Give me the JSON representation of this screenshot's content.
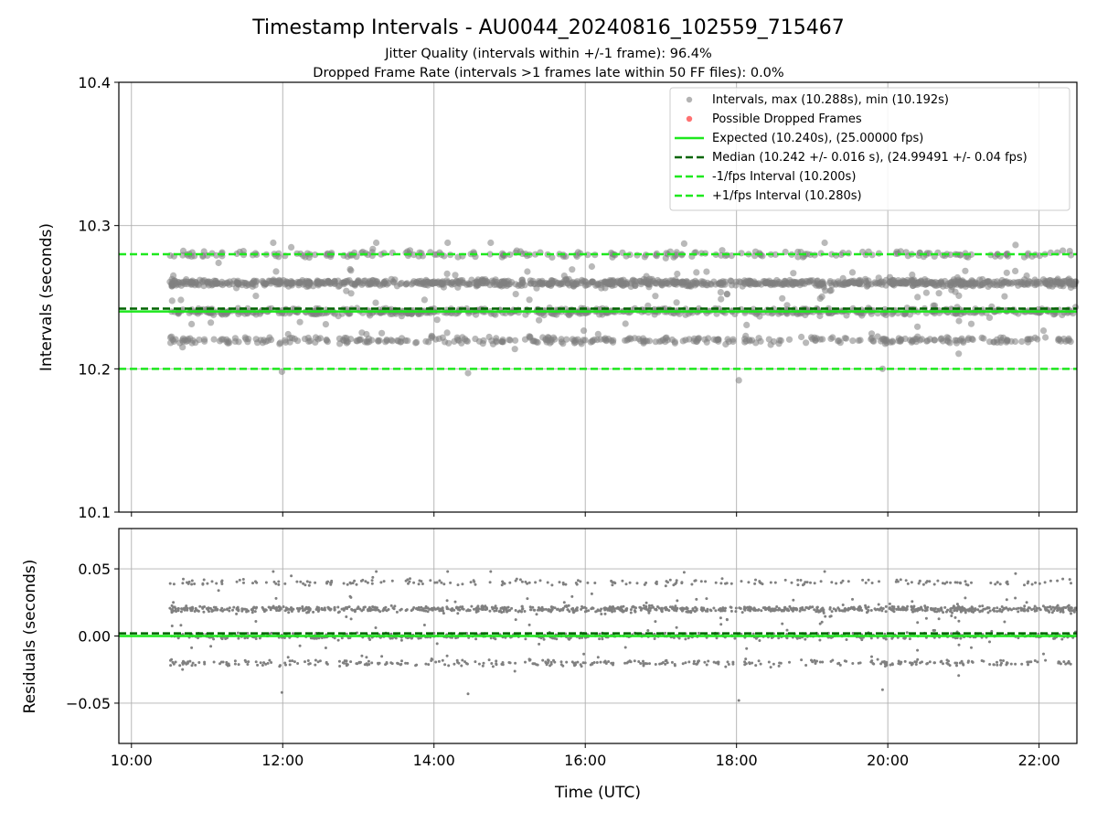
{
  "figure": {
    "title": "Timestamp Intervals - AU0044_20240816_102559_715467",
    "subtitle_1": "Jitter Quality (intervals within +/-1 frame): 96.4%",
    "subtitle_2": "Dropped Frame Rate (intervals >1 frames late within 50 FF files): 0.0%",
    "xlabel": "Time (UTC)"
  },
  "colors": {
    "scatter": "#808080",
    "dropped": "#ff4d4d",
    "expected": "#1ee81e",
    "median": "#006400",
    "interval_lines": "#1ee81e",
    "grid": "#b0b0b0"
  },
  "chart_data": [
    {
      "type": "scatter",
      "ylabel": "Intervals (seconds)",
      "xlim": [
        "09:50",
        "22:30"
      ],
      "ylim": [
        10.1,
        10.4
      ],
      "yticks": [
        10.1,
        10.2,
        10.3,
        10.4
      ],
      "ytick_labels": [
        "10.1",
        "10.2",
        "10.3",
        "10.4"
      ],
      "grid": true,
      "legend_position": "top-right",
      "series": [
        {
          "name": "Intervals, max (10.288s), min (10.192s)",
          "kind": "scatter",
          "x_range": [
            "10:30",
            "22:30"
          ],
          "approx_levels": [
            10.22,
            10.24,
            10.26,
            10.28
          ],
          "max": 10.288,
          "min": 10.192
        },
        {
          "name": "Possible Dropped Frames",
          "kind": "scatter",
          "values": []
        },
        {
          "name": "Expected (10.240s), (25.00000 fps)",
          "kind": "hline",
          "y": 10.24
        },
        {
          "name": "Median (10.242 +/- 0.016 s), (24.99491 +/- 0.04 fps)",
          "kind": "hline",
          "y": 10.242
        },
        {
          "name": "-1/fps Interval (10.200s)",
          "kind": "hline",
          "y": 10.2
        },
        {
          "name": "+1/fps Interval (10.280s)",
          "kind": "hline",
          "y": 10.28
        }
      ]
    },
    {
      "type": "scatter",
      "ylabel": "Residuals (seconds)",
      "xlabel": "Time (UTC)",
      "xlim": [
        "09:50",
        "22:30"
      ],
      "ylim": [
        -0.08,
        0.08
      ],
      "yticks": [
        0.05,
        0.0,
        -0.05
      ],
      "ytick_labels": [
        "0.05",
        "0.00",
        "−0.05"
      ],
      "xticks": [
        "10:00",
        "12:00",
        "14:00",
        "16:00",
        "18:00",
        "20:00",
        "22:00"
      ],
      "grid": true,
      "series": [
        {
          "name": "Residuals",
          "kind": "scatter",
          "approx_levels": [
            -0.02,
            0.0,
            0.02,
            0.04
          ],
          "max": 0.048,
          "min": -0.048
        },
        {
          "name": "Expected",
          "kind": "hline",
          "y": 0.0
        },
        {
          "name": "Median",
          "kind": "hline",
          "y": 0.002
        }
      ]
    }
  ]
}
